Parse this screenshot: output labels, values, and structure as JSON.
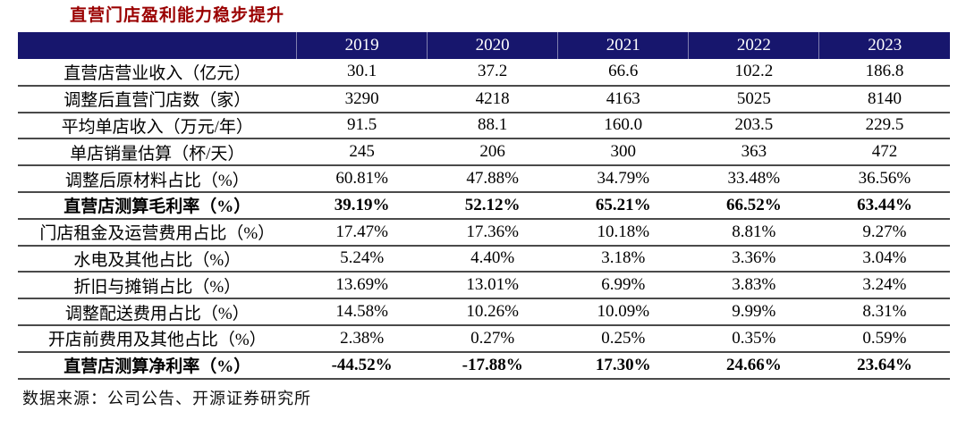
{
  "title": "直营门店盈利能力稳步提升",
  "source_note": "数据来源：公司公告、开源证券研究所",
  "colors": {
    "header_bg": "#17166d",
    "header_text": "#ffffff",
    "title_text": "#9a0000",
    "row_border": "#4a4a4a"
  },
  "chart_data": {
    "type": "table",
    "title": "直营门店盈利能力稳步提升",
    "columns": [
      "2019",
      "2020",
      "2021",
      "2022",
      "2023"
    ],
    "rows": [
      {
        "label": "直营店营业收入（亿元）",
        "values": [
          "30.1",
          "37.2",
          "66.6",
          "102.2",
          "186.8"
        ],
        "bold": false
      },
      {
        "label": "调整后直营门店数（家）",
        "values": [
          "3290",
          "4218",
          "4163",
          "5025",
          "8140"
        ],
        "bold": false
      },
      {
        "label": "平均单店收入（万元/年）",
        "values": [
          "91.5",
          "88.1",
          "160.0",
          "203.5",
          "229.5"
        ],
        "bold": false
      },
      {
        "label": "单店销量估算（杯/天）",
        "values": [
          "245",
          "206",
          "300",
          "363",
          "472"
        ],
        "bold": false
      },
      {
        "label": "调整后原材料占比（%）",
        "values": [
          "60.81%",
          "47.88%",
          "34.79%",
          "33.48%",
          "36.56%"
        ],
        "bold": false
      },
      {
        "label": "直营店测算毛利率（%）",
        "values": [
          "39.19%",
          "52.12%",
          "65.21%",
          "66.52%",
          "63.44%"
        ],
        "bold": true
      },
      {
        "label": "门店租金及运营费用占比（%）",
        "values": [
          "17.47%",
          "17.36%",
          "10.18%",
          "8.81%",
          "9.27%"
        ],
        "bold": false
      },
      {
        "label": "水电及其他占比（%）",
        "values": [
          "5.24%",
          "4.40%",
          "3.18%",
          "3.36%",
          "3.04%"
        ],
        "bold": false
      },
      {
        "label": "折旧与摊销占比（%）",
        "values": [
          "13.69%",
          "13.01%",
          "6.99%",
          "3.83%",
          "3.24%"
        ],
        "bold": false
      },
      {
        "label": "调整配送费用占比（%）",
        "values": [
          "14.58%",
          "10.26%",
          "10.09%",
          "9.99%",
          "8.31%"
        ],
        "bold": false
      },
      {
        "label": "开店前费用及其他占比（%）",
        "values": [
          "2.38%",
          "0.27%",
          "0.25%",
          "0.35%",
          "0.59%"
        ],
        "bold": false
      },
      {
        "label": "直营店测算净利率（%）",
        "values": [
          "-44.52%",
          "-17.88%",
          "17.30%",
          "24.66%",
          "23.64%"
        ],
        "bold": true
      }
    ]
  }
}
